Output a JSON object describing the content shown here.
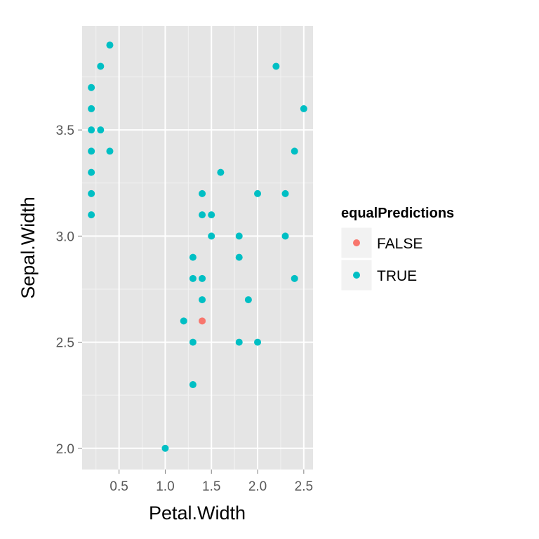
{
  "chart_data": {
    "type": "scatter",
    "xlabel": "Petal.Width",
    "ylabel": "Sepal.Width",
    "xlim": [
      0.1,
      2.6
    ],
    "ylim": [
      1.9,
      3.99
    ],
    "x_ticks": [
      0.5,
      1.0,
      1.5,
      2.0,
      2.5
    ],
    "x_tick_labels": [
      "0.5",
      "1.0",
      "1.5",
      "2.0",
      "2.5"
    ],
    "y_ticks": [
      2.0,
      2.5,
      3.0,
      3.5
    ],
    "y_tick_labels": [
      "2.0",
      "2.5",
      "3.0",
      "3.5"
    ],
    "grid": true,
    "legend": {
      "title": "equalPredictions",
      "placement": "right",
      "entries": [
        {
          "label": "FALSE",
          "color": "#F8766D"
        },
        {
          "label": "TRUE",
          "color": "#00BFC4"
        }
      ]
    },
    "series": [
      {
        "name": "FALSE",
        "color": "#F8766D",
        "points": [
          [
            1.4,
            2.6
          ]
        ]
      },
      {
        "name": "TRUE",
        "color": "#00BFC4",
        "points": [
          [
            0.2,
            3.7
          ],
          [
            0.2,
            3.6
          ],
          [
            0.2,
            3.5
          ],
          [
            0.2,
            3.4
          ],
          [
            0.2,
            3.3
          ],
          [
            0.2,
            3.2
          ],
          [
            0.2,
            3.1
          ],
          [
            0.3,
            3.8
          ],
          [
            0.3,
            3.5
          ],
          [
            0.4,
            3.9
          ],
          [
            0.4,
            3.4
          ],
          [
            1.0,
            2.0
          ],
          [
            1.2,
            2.6
          ],
          [
            1.3,
            2.9
          ],
          [
            1.3,
            2.8
          ],
          [
            1.3,
            2.5
          ],
          [
            1.3,
            2.3
          ],
          [
            1.4,
            3.2
          ],
          [
            1.4,
            3.1
          ],
          [
            1.4,
            2.8
          ],
          [
            1.4,
            2.7
          ],
          [
            1.5,
            3.1
          ],
          [
            1.5,
            3.0
          ],
          [
            1.6,
            3.3
          ],
          [
            1.8,
            3.0
          ],
          [
            1.8,
            2.9
          ],
          [
            1.8,
            2.5
          ],
          [
            1.9,
            2.7
          ],
          [
            2.0,
            3.2
          ],
          [
            2.0,
            2.5
          ],
          [
            2.2,
            3.8
          ],
          [
            2.3,
            3.2
          ],
          [
            2.3,
            3.0
          ],
          [
            2.4,
            3.4
          ],
          [
            2.4,
            2.8
          ],
          [
            2.5,
            3.6
          ]
        ]
      }
    ]
  }
}
